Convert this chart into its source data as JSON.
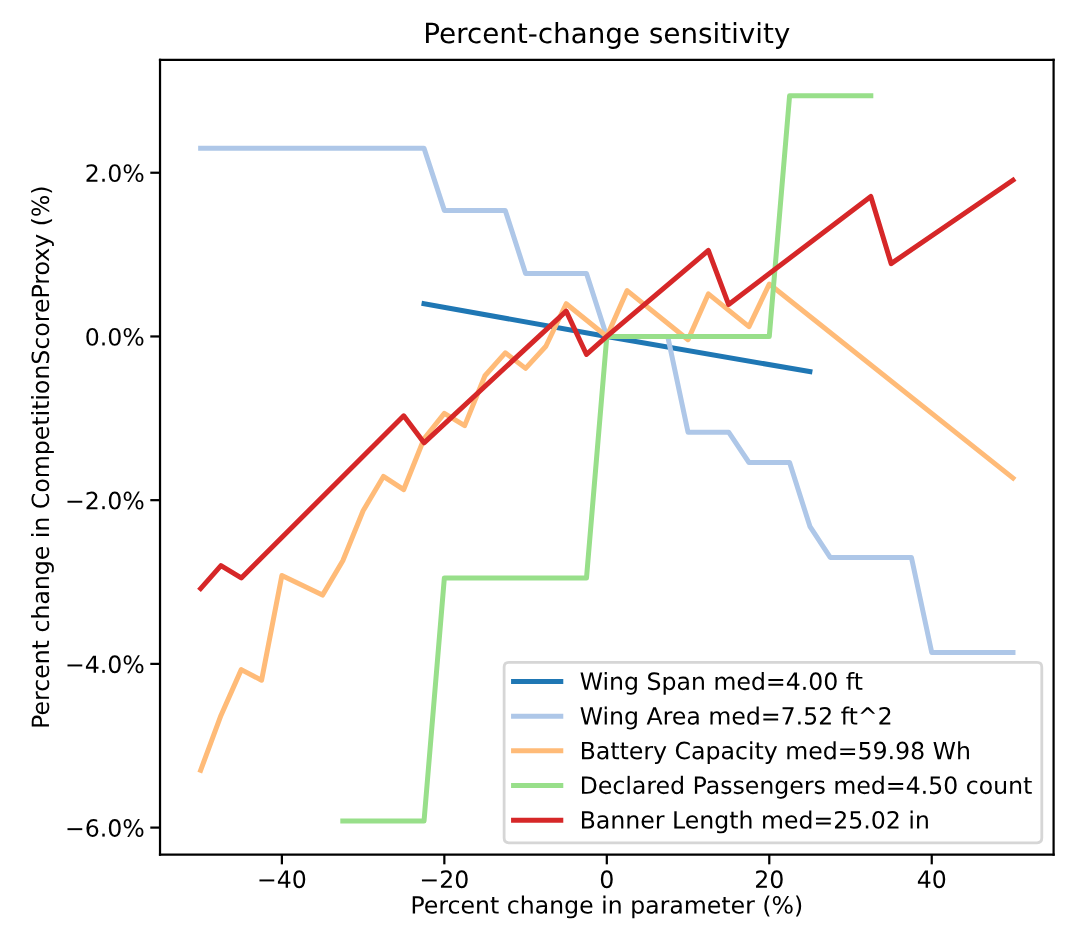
{
  "chart_data": {
    "type": "line",
    "title": "Percent-change sensitivity",
    "xlabel": "Percent change in parameter (%)",
    "ylabel": "Percent change in CompetitionScoreProxy (%)",
    "xlim": [
      -55,
      55
    ],
    "ylim": [
      -6.33,
      3.38
    ],
    "xticks": [
      {
        "value": -40,
        "label": "−40"
      },
      {
        "value": -20,
        "label": "−20"
      },
      0,
      20,
      40
    ],
    "yticks": [
      {
        "value": -6,
        "label": "−6.0%"
      },
      {
        "value": -4,
        "label": "−4.0%"
      },
      {
        "value": -2,
        "label": "−2.0%"
      },
      {
        "value": 0,
        "label": "0.0%"
      },
      {
        "value": 2,
        "label": "2.0%"
      }
    ],
    "grid": false,
    "legend": "bottom right",
    "marker": "none",
    "line_style": "solid",
    "series": [
      {
        "name": "Wing Span med=4.00 ft",
        "color": "#1f77b4",
        "x": [
          -22.5,
          0,
          25
        ],
        "values": [
          0.4,
          0,
          -0.43
        ]
      },
      {
        "name": "Wing Area med=7.52 ft^2",
        "color": "#aec7e8",
        "x": [
          -50,
          -22.5,
          -20,
          -12.5,
          -10,
          -2.5,
          0,
          7.5,
          10,
          15,
          17.5,
          22.5,
          25,
          27.5,
          37.5,
          40,
          50
        ],
        "values": [
          2.3,
          2.3,
          1.54,
          1.54,
          0.77,
          0.77,
          0,
          0,
          -1.17,
          -1.17,
          -1.54,
          -1.54,
          -2.32,
          -2.7,
          -2.7,
          -3.86,
          -3.86
        ]
      },
      {
        "name": "Battery Capacity med=59.98 Wh",
        "color": "#ffbb78",
        "x": [
          -50,
          -47.5,
          -45,
          -42.5,
          -40,
          -35,
          -32.5,
          -30,
          -27.5,
          -25,
          -22.5,
          -20,
          -17.5,
          -15,
          -12.5,
          -10,
          -7.5,
          -5,
          0,
          2.5,
          10,
          12.5,
          17.5,
          20,
          50
        ],
        "values": [
          -5.3,
          -4.63,
          -4.07,
          -4.2,
          -2.92,
          -3.16,
          -2.74,
          -2.13,
          -1.71,
          -1.87,
          -1.25,
          -0.94,
          -1.09,
          -0.48,
          -0.2,
          -0.39,
          -0.12,
          0.4,
          0,
          0.56,
          -0.04,
          0.52,
          0.12,
          0.64,
          -1.73
        ]
      },
      {
        "name": "Declared Passengers med=4.50 count",
        "color": "#98df8a",
        "x": [
          -32.5,
          -22.5,
          -20,
          -2.5,
          0,
          20,
          22.5,
          32.5
        ],
        "values": [
          -5.92,
          -5.92,
          -2.95,
          -2.95,
          0,
          0,
          2.94,
          2.94
        ]
      },
      {
        "name": "Banner Length med=25.02 in",
        "color": "#d62728",
        "x": [
          -50,
          -47.5,
          -45,
          -25,
          -22.5,
          -5,
          -2.5,
          0,
          12.5,
          15,
          32.5,
          35,
          50
        ],
        "values": [
          -3.08,
          -2.8,
          -2.95,
          -0.97,
          -1.3,
          0.31,
          -0.22,
          0,
          1.05,
          0.39,
          1.71,
          0.89,
          1.91
        ]
      }
    ]
  }
}
